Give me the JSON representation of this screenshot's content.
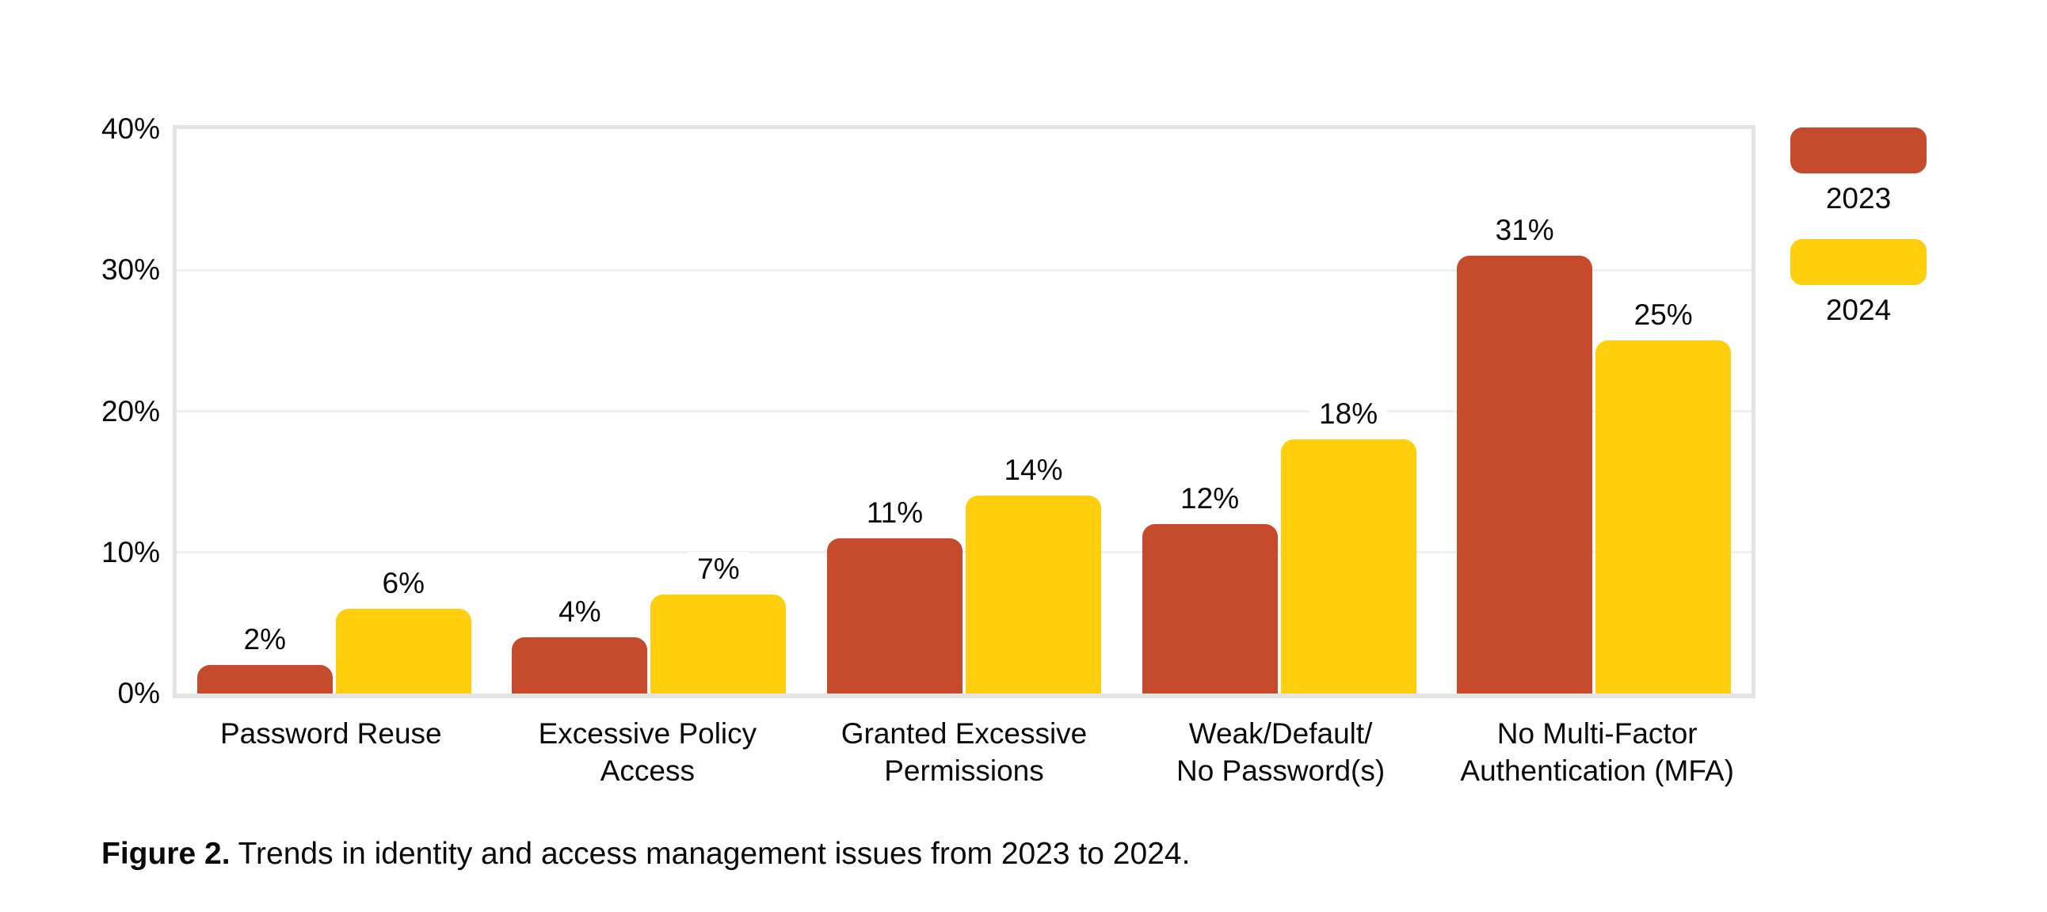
{
  "chart_data": {
    "type": "bar",
    "title": "",
    "categories": [
      "Password Reuse",
      "Excessive Policy\nAccess",
      "Granted Excessive\nPermissions",
      "Weak/Default/\nNo Password(s)",
      "No Multi-Factor\nAuthentication (MFA)"
    ],
    "series": [
      {
        "name": "2023",
        "color": "#C54B2C",
        "values": [
          2,
          4,
          11,
          12,
          31
        ],
        "labels": [
          "2%",
          "4%",
          "11%",
          "12%",
          "31%"
        ]
      },
      {
        "name": "2024",
        "color": "#FFCE0D",
        "values": [
          6,
          7,
          14,
          18,
          25
        ],
        "labels": [
          "6%",
          "7%",
          "14%",
          "18%",
          "25%"
        ]
      }
    ],
    "xlabel": "",
    "ylabel": "",
    "ylim": [
      0,
      40
    ],
    "yticks": [
      {
        "value": 0,
        "label": "0%"
      },
      {
        "value": 10,
        "label": "10%"
      },
      {
        "value": 20,
        "label": "20%"
      },
      {
        "value": 30,
        "label": "30%"
      },
      {
        "value": 40,
        "label": "40%"
      }
    ],
    "grid": true,
    "legend_position": "right",
    "bar_style": "rounded-top"
  },
  "caption": {
    "bold": "Figure 2.",
    "text": " Trends in identity and access management issues from 2023 to 2024."
  },
  "colors": {
    "series_2023": "#C54B2C",
    "series_2024": "#FFCE0D",
    "axis_border": "#E4E4E4",
    "gridline": "#EFEFEF",
    "text": "#0A0A0A",
    "background": "#FFFFFF"
  }
}
